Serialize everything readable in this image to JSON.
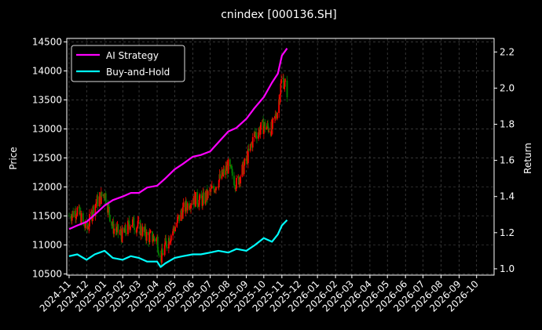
{
  "chart_data": {
    "type": "line",
    "title": "cnindex [000136.SH]",
    "ylabel": "Price",
    "y2label": "Return",
    "ylim": [
      10480,
      14560
    ],
    "y2lim": [
      0.965,
      2.275
    ],
    "xlim": [
      "2024-10-28",
      "2026-10-31"
    ],
    "yticks": [
      10500,
      11000,
      11500,
      12000,
      12500,
      13000,
      13500,
      14000,
      14500
    ],
    "y2ticks": [
      1.0,
      1.2,
      1.4,
      1.6,
      1.8,
      2.0,
      2.2
    ],
    "xticks": [
      "2024-11",
      "2024-12",
      "2025-01",
      "2025-02",
      "2025-03",
      "2025-04",
      "2025-05",
      "2025-06",
      "2025-07",
      "2025-08",
      "2025-09",
      "2025-10",
      "2025-11",
      "2025-12",
      "2026-01",
      "2026-02",
      "2026-03",
      "2026-04",
      "2026-05",
      "2026-06",
      "2026-07",
      "2026-08",
      "2026-09",
      "2026-10"
    ],
    "grid": true,
    "legend_placement": "top-left",
    "colors": {
      "background": "#000000",
      "strategy": "#ff00ff",
      "buyhold": "#00ffff",
      "up_candle": "#ff0000",
      "down_candle": "#008000",
      "grid": "#555555"
    },
    "price_series": {
      "name": "",
      "dates": [
        "2024-11-01",
        "2024-11-15",
        "2024-12-01",
        "2024-12-15",
        "2025-01-01",
        "2025-01-15",
        "2025-02-01",
        "2025-02-15",
        "2025-03-01",
        "2025-03-15",
        "2025-04-01",
        "2025-04-07",
        "2025-04-15",
        "2025-05-01",
        "2025-05-15",
        "2025-06-01",
        "2025-06-15",
        "2025-07-01",
        "2025-07-15",
        "2025-08-01",
        "2025-08-15",
        "2025-09-01",
        "2025-09-15",
        "2025-10-01",
        "2025-10-15",
        "2025-10-25",
        "2025-11-01",
        "2025-11-10"
      ],
      "values": [
        11500,
        11600,
        11250,
        11700,
        11900,
        11300,
        11150,
        11400,
        11300,
        11150,
        11100,
        10750,
        11000,
        11300,
        11600,
        11800,
        11750,
        11900,
        12100,
        12350,
        12050,
        12450,
        12900,
        13050,
        13000,
        13350,
        13900,
        13650
      ]
    },
    "series": [
      {
        "name": "AI Strategy",
        "dates": [
          "2024-11-01",
          "2024-11-15",
          "2024-12-01",
          "2024-12-15",
          "2025-01-01",
          "2025-01-15",
          "2025-02-01",
          "2025-02-15",
          "2025-03-01",
          "2025-03-15",
          "2025-04-01",
          "2025-04-15",
          "2025-05-01",
          "2025-05-15",
          "2025-06-01",
          "2025-06-15",
          "2025-07-01",
          "2025-07-15",
          "2025-08-01",
          "2025-08-15",
          "2025-09-01",
          "2025-09-15",
          "2025-10-01",
          "2025-10-15",
          "2025-10-25",
          "2025-11-01",
          "2025-11-10"
        ],
        "values": [
          1.22,
          1.24,
          1.26,
          1.3,
          1.35,
          1.38,
          1.4,
          1.42,
          1.42,
          1.45,
          1.46,
          1.5,
          1.55,
          1.58,
          1.62,
          1.63,
          1.65,
          1.7,
          1.76,
          1.78,
          1.83,
          1.89,
          1.95,
          2.03,
          2.08,
          2.18,
          2.22
        ]
      },
      {
        "name": "Buy-and-Hold",
        "dates": [
          "2024-11-01",
          "2024-11-15",
          "2024-12-01",
          "2024-12-15",
          "2025-01-01",
          "2025-01-15",
          "2025-02-01",
          "2025-02-15",
          "2025-03-01",
          "2025-03-15",
          "2025-04-01",
          "2025-04-07",
          "2025-04-15",
          "2025-05-01",
          "2025-05-15",
          "2025-06-01",
          "2025-06-15",
          "2025-07-01",
          "2025-07-15",
          "2025-08-01",
          "2025-08-15",
          "2025-09-01",
          "2025-09-15",
          "2025-10-01",
          "2025-10-15",
          "2025-10-25",
          "2025-11-01",
          "2025-11-10"
        ],
        "values": [
          1.07,
          1.08,
          1.05,
          1.08,
          1.1,
          1.06,
          1.05,
          1.07,
          1.06,
          1.04,
          1.04,
          1.01,
          1.03,
          1.06,
          1.07,
          1.08,
          1.08,
          1.09,
          1.1,
          1.09,
          1.11,
          1.1,
          1.13,
          1.17,
          1.15,
          1.19,
          1.24,
          1.27
        ]
      }
    ]
  }
}
